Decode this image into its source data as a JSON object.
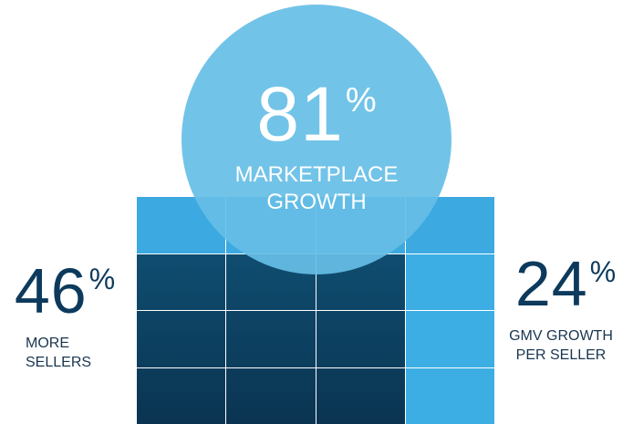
{
  "main_stat": {
    "value": "81",
    "unit": "%",
    "label_line1": "MARKETPLACE",
    "label_line2": "GROWTH"
  },
  "left_stat": {
    "value": "46",
    "unit": "%",
    "label_line1": "MORE",
    "label_line2": "SELLERS"
  },
  "right_stat": {
    "value": "24",
    "unit": "%",
    "label_line1": "GMV GROWTH",
    "label_line2": "PER SELLER"
  },
  "colors": {
    "circle": "#66bee6",
    "light_blue": "#3daee3",
    "dark_navy": "#0d4465",
    "stat_text": "#0d3a5c"
  }
}
